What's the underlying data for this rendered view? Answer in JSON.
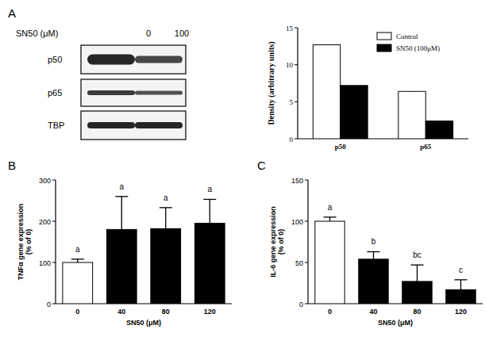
{
  "panel_labels": [
    "A",
    "B",
    "C"
  ],
  "blot": {
    "treatment_label": "SN50 (μM)",
    "doses": [
      0,
      100
    ],
    "bands": [
      "p50",
      "p65",
      "TBP"
    ]
  },
  "chart_data": [
    {
      "type": "bar",
      "y_label": "Density (arbitrary units)",
      "categories": [
        "p50",
        "p65"
      ],
      "series": [
        {
          "name": "Control",
          "color": "#ffffff",
          "values": [
            12.7,
            6.4
          ]
        },
        {
          "name": "SN50 (100μM)",
          "color": "#000000",
          "values": [
            7.2,
            2.4
          ]
        }
      ],
      "ylim": [
        0,
        15
      ],
      "yticks": [
        0,
        5,
        10,
        15
      ],
      "legend": "upper right"
    },
    {
      "type": "bar",
      "x_label": "SN50 (μM)",
      "y_label": "TNFα gene expression (% of 0)",
      "categories": [
        "0",
        "40",
        "80",
        "120"
      ],
      "values": [
        100,
        180,
        182,
        195
      ],
      "errors": [
        8,
        80,
        51,
        58
      ],
      "annotations": [
        "a",
        "a",
        "a",
        "a"
      ],
      "colors": [
        "#ffffff",
        "#000000",
        "#000000",
        "#000000"
      ],
      "ylim": [
        0,
        300
      ],
      "yticks": [
        0,
        100,
        200,
        300
      ]
    },
    {
      "type": "bar",
      "x_label": "SN50 (μM)",
      "y_label": "IL-6 gene expression (% of 0)",
      "categories": [
        "0",
        "40",
        "80",
        "120"
      ],
      "values": [
        100,
        54,
        27,
        17
      ],
      "errors": [
        5,
        9,
        20,
        12
      ],
      "annotations": [
        "a",
        "b",
        "bc",
        "c"
      ],
      "colors": [
        "#ffffff",
        "#000000",
        "#000000",
        "#000000"
      ],
      "ylim": [
        0,
        150
      ],
      "yticks": [
        0,
        50,
        100,
        150
      ]
    }
  ]
}
